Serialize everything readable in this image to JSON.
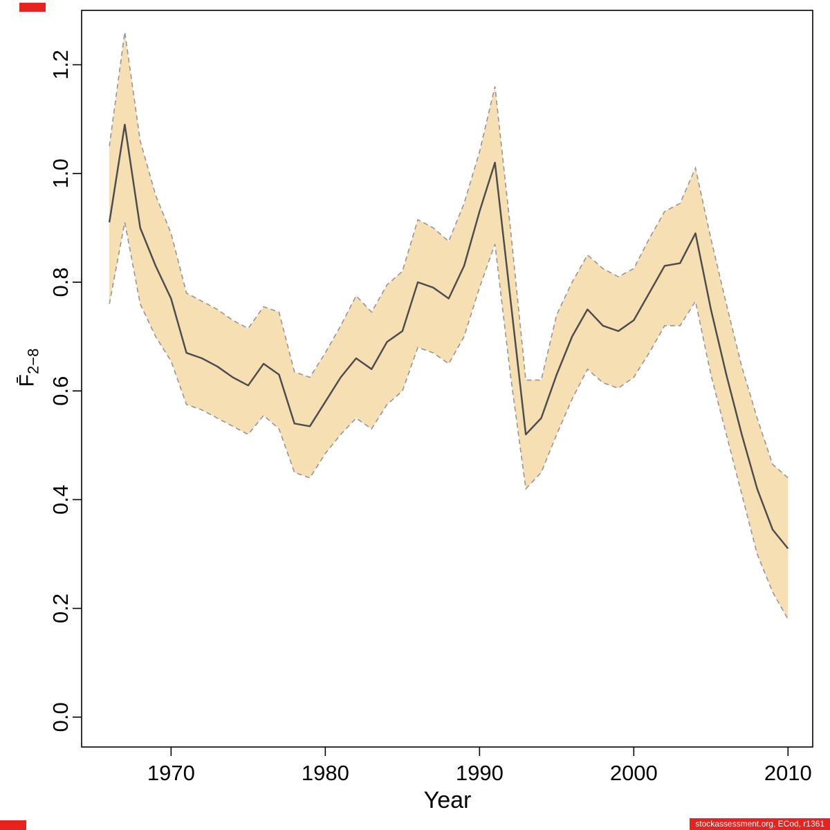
{
  "chart_data": {
    "type": "line",
    "title": "",
    "xlabel": "Year",
    "ylabel_base": "F̄",
    "ylabel_sub": "2−8",
    "legend": "none",
    "grid": false,
    "x_ticks": [
      1970,
      1980,
      1990,
      2000,
      2010
    ],
    "y_ticks": [
      "0.0",
      "0.2",
      "0.4",
      "0.6",
      "0.8",
      "1.0",
      "1.2"
    ],
    "xlim": [
      1964.2,
      2011.6
    ],
    "ylim": [
      -0.055,
      1.3
    ],
    "band_color": "#f5dfb3",
    "edge_color": "#9a9a9a",
    "line_color": "#4d4d4d",
    "years": [
      1966,
      1967,
      1968,
      1969,
      1970,
      1971,
      1972,
      1973,
      1974,
      1975,
      1976,
      1977,
      1978,
      1979,
      1980,
      1981,
      1982,
      1983,
      1984,
      1985,
      1986,
      1987,
      1988,
      1989,
      1990,
      1991,
      1992,
      1993,
      1994,
      1995,
      1996,
      1997,
      1998,
      1999,
      2000,
      2001,
      2002,
      2003,
      2004,
      2005,
      2006,
      2007,
      2008,
      2009,
      2010
    ],
    "series": [
      {
        "name": "mean",
        "values": [
          0.91,
          1.09,
          0.9,
          0.83,
          0.77,
          0.67,
          0.66,
          0.645,
          0.625,
          0.61,
          0.65,
          0.63,
          0.54,
          0.535,
          0.58,
          0.625,
          0.66,
          0.64,
          0.69,
          0.71,
          0.8,
          0.79,
          0.77,
          0.83,
          0.93,
          1.02,
          0.77,
          0.52,
          0.55,
          0.63,
          0.7,
          0.75,
          0.72,
          0.71,
          0.73,
          0.78,
          0.83,
          0.835,
          0.89,
          0.75,
          0.63,
          0.52,
          0.42,
          0.345,
          0.31
        ]
      },
      {
        "name": "lower",
        "values": [
          0.76,
          0.91,
          0.76,
          0.7,
          0.655,
          0.575,
          0.565,
          0.55,
          0.535,
          0.52,
          0.555,
          0.53,
          0.45,
          0.44,
          0.485,
          0.52,
          0.55,
          0.53,
          0.575,
          0.6,
          0.68,
          0.67,
          0.65,
          0.7,
          0.79,
          0.87,
          0.63,
          0.42,
          0.45,
          0.52,
          0.585,
          0.64,
          0.615,
          0.605,
          0.625,
          0.67,
          0.72,
          0.72,
          0.765,
          0.63,
          0.52,
          0.41,
          0.3,
          0.23,
          0.18
        ]
      },
      {
        "name": "upper",
        "values": [
          1.05,
          1.26,
          1.06,
          0.96,
          0.89,
          0.78,
          0.765,
          0.75,
          0.73,
          0.715,
          0.755,
          0.745,
          0.635,
          0.625,
          0.67,
          0.72,
          0.775,
          0.745,
          0.795,
          0.82,
          0.915,
          0.9,
          0.875,
          0.945,
          1.04,
          1.16,
          0.9,
          0.62,
          0.62,
          0.74,
          0.8,
          0.85,
          0.825,
          0.81,
          0.825,
          0.88,
          0.93,
          0.945,
          1.01,
          0.88,
          0.76,
          0.645,
          0.55,
          0.465,
          0.44
        ]
      }
    ]
  },
  "footer": {
    "text": "stockassessment.org, ECod, r1361"
  },
  "marks": {
    "color": "#e8221f"
  }
}
